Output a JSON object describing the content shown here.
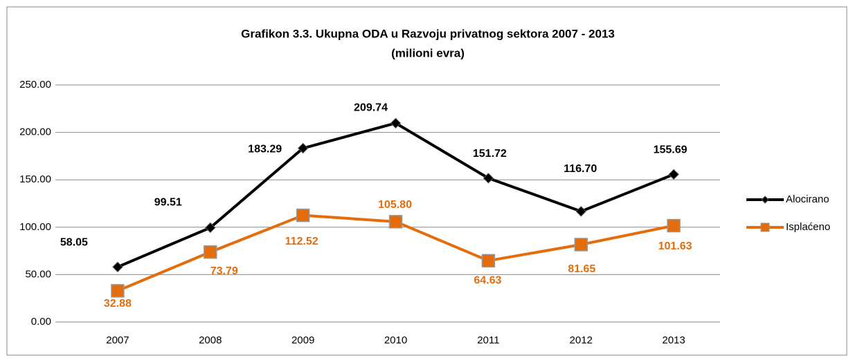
{
  "chart_data": {
    "type": "line",
    "title": "Grafikon 3.3. Ukupna ODA u Razvoju privatnog sektora 2007 - 2013",
    "subtitle": "(milioni evra)",
    "categories": [
      "2007",
      "2008",
      "2009",
      "2010",
      "2011",
      "2012",
      "2013"
    ],
    "series": [
      {
        "name": "Alocirano",
        "color": "#000000",
        "marker": "diamond",
        "values": [
          58.05,
          99.51,
          183.29,
          209.74,
          151.72,
          116.7,
          155.69
        ],
        "value_labels": [
          "58.05",
          "99.51",
          "183.29",
          "209.74",
          "151.72",
          "116.70",
          "155.69"
        ]
      },
      {
        "name": "Isplaćeno",
        "color": "#e46c0a",
        "marker": "square",
        "values": [
          32.88,
          73.79,
          112.52,
          105.8,
          64.63,
          81.65,
          101.63
        ],
        "value_labels": [
          "32.88",
          "73.79",
          "112.52",
          "105.80",
          "64.63",
          "81.65",
          "101.63"
        ]
      }
    ],
    "ylim": [
      0,
      250
    ],
    "yticks": [
      {
        "value": 0,
        "label": "0.00"
      },
      {
        "value": 50,
        "label": "50.00"
      },
      {
        "value": 100,
        "label": "100.00"
      },
      {
        "value": 150,
        "label": "150.00"
      },
      {
        "value": 200,
        "label": "200.00"
      },
      {
        "value": 250,
        "label": "250.00"
      }
    ],
    "grid": true,
    "legend": "right"
  }
}
